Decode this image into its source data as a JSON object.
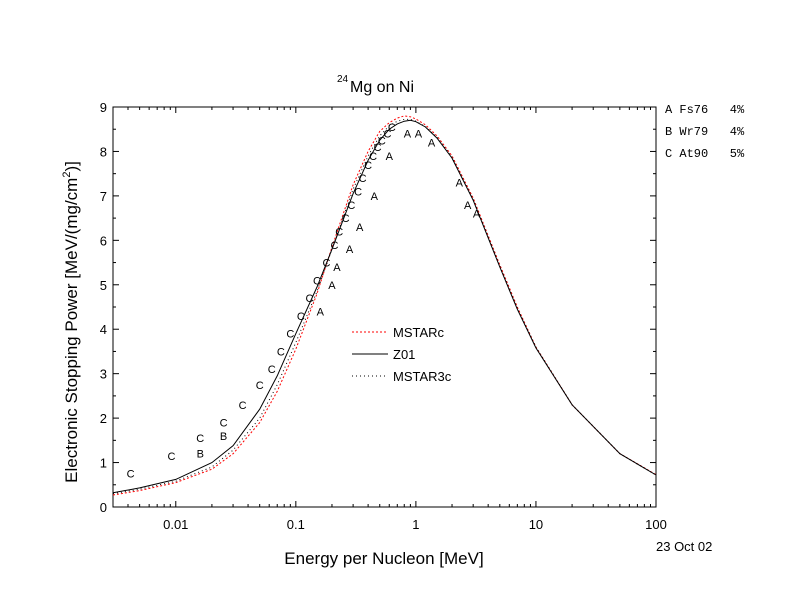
{
  "chart_data": {
    "type": "line",
    "title_superscript": "24",
    "title": "Mg on Ni",
    "xlabel": "Energy per Nucleon [MeV]",
    "ylabel": "Electronic Stopping Power [MeV/(mg/cm",
    "ylabel_sup": "2",
    "ylabel_end": ")]",
    "date": "23 Oct 02",
    "x_scale": "log",
    "xlim": [
      0.003,
      100
    ],
    "ylim": [
      0,
      9
    ],
    "x_ticks": [
      {
        "value": 0.01,
        "label": "0.01"
      },
      {
        "value": 0.1,
        "label": "0.1"
      },
      {
        "value": 1,
        "label": "1"
      },
      {
        "value": 10,
        "label": "10"
      },
      {
        "value": 100,
        "label": "100"
      }
    ],
    "y_ticks": [
      0,
      1,
      2,
      3,
      4,
      5,
      6,
      7,
      8,
      9
    ],
    "legend_position": "center",
    "series": [
      {
        "name": "MSTARc",
        "color": "#ff0000",
        "dash": "2,2",
        "x": [
          0.003,
          0.005,
          0.01,
          0.02,
          0.03,
          0.05,
          0.07,
          0.1,
          0.15,
          0.2,
          0.3,
          0.4,
          0.5,
          0.6,
          0.7,
          0.8,
          0.9,
          1.0,
          1.2,
          1.5,
          2,
          3,
          5,
          7,
          10,
          20,
          50,
          100
        ],
        "y": [
          0.27,
          0.37,
          0.55,
          0.85,
          1.2,
          1.9,
          2.6,
          3.55,
          4.8,
          5.85,
          7.25,
          8.0,
          8.45,
          8.65,
          8.75,
          8.8,
          8.78,
          8.73,
          8.6,
          8.35,
          7.9,
          6.95,
          5.45,
          4.5,
          3.6,
          2.3,
          1.2,
          0.73
        ]
      },
      {
        "name": "Z01",
        "color": "#000000",
        "dash": "",
        "x": [
          0.003,
          0.005,
          0.01,
          0.02,
          0.03,
          0.05,
          0.07,
          0.1,
          0.15,
          0.2,
          0.3,
          0.4,
          0.5,
          0.6,
          0.7,
          0.8,
          0.9,
          1.0,
          1.2,
          1.5,
          2,
          3,
          5,
          7,
          10,
          20,
          50,
          100
        ],
        "y": [
          0.32,
          0.43,
          0.62,
          1.0,
          1.38,
          2.2,
          2.95,
          3.9,
          4.95,
          5.8,
          7.05,
          7.8,
          8.25,
          8.5,
          8.62,
          8.68,
          8.7,
          8.67,
          8.55,
          8.3,
          7.85,
          6.9,
          5.4,
          4.45,
          3.58,
          2.3,
          1.2,
          0.72
        ]
      },
      {
        "name": "MSTAR3c",
        "color": "#000000",
        "dash": "1,3",
        "x": [
          0.003,
          0.005,
          0.01,
          0.02,
          0.03,
          0.05,
          0.07,
          0.1,
          0.15,
          0.2,
          0.3,
          0.4,
          0.5,
          0.6,
          0.7,
          0.8,
          0.9,
          1.0,
          1.2,
          1.5,
          2,
          3,
          5,
          7,
          10,
          20,
          50,
          100
        ],
        "y": [
          0.3,
          0.4,
          0.58,
          0.9,
          1.28,
          2.0,
          2.75,
          3.7,
          4.85,
          5.8,
          7.15,
          7.9,
          8.35,
          8.58,
          8.68,
          8.72,
          8.72,
          8.68,
          8.56,
          8.32,
          7.87,
          6.92,
          5.42,
          4.47,
          3.6,
          2.3,
          1.2,
          0.72
        ]
      }
    ],
    "datasets": [
      {
        "symbol": "A",
        "label": "A Fs76   4%",
        "points": [
          {
            "x": 0.16,
            "y": 4.4
          },
          {
            "x": 0.2,
            "y": 5.0
          },
          {
            "x": 0.22,
            "y": 5.4
          },
          {
            "x": 0.28,
            "y": 5.8
          },
          {
            "x": 0.34,
            "y": 6.3
          },
          {
            "x": 0.45,
            "y": 7.0
          },
          {
            "x": 0.6,
            "y": 7.9
          },
          {
            "x": 0.85,
            "y": 8.4
          },
          {
            "x": 1.05,
            "y": 8.4
          },
          {
            "x": 1.35,
            "y": 8.2
          },
          {
            "x": 2.3,
            "y": 7.3
          },
          {
            "x": 2.7,
            "y": 6.8
          },
          {
            "x": 3.2,
            "y": 6.6
          }
        ]
      },
      {
        "symbol": "B",
        "label": "B Wr79   4%",
        "points": [
          {
            "x": 0.016,
            "y": 1.2
          },
          {
            "x": 0.025,
            "y": 1.6
          }
        ]
      },
      {
        "symbol": "C",
        "label": "C At90   5%",
        "points": [
          {
            "x": 0.0042,
            "y": 0.75
          },
          {
            "x": 0.0092,
            "y": 1.15
          },
          {
            "x": 0.016,
            "y": 1.55
          },
          {
            "x": 0.025,
            "y": 1.9
          },
          {
            "x": 0.036,
            "y": 2.3
          },
          {
            "x": 0.05,
            "y": 2.75
          },
          {
            "x": 0.063,
            "y": 3.1
          },
          {
            "x": 0.075,
            "y": 3.5
          },
          {
            "x": 0.09,
            "y": 3.9
          },
          {
            "x": 0.11,
            "y": 4.3
          },
          {
            "x": 0.13,
            "y": 4.7
          },
          {
            "x": 0.15,
            "y": 5.1
          },
          {
            "x": 0.18,
            "y": 5.5
          },
          {
            "x": 0.21,
            "y": 5.9
          },
          {
            "x": 0.23,
            "y": 6.2
          },
          {
            "x": 0.26,
            "y": 6.5
          },
          {
            "x": 0.29,
            "y": 6.8
          },
          {
            "x": 0.33,
            "y": 7.1
          },
          {
            "x": 0.36,
            "y": 7.4
          },
          {
            "x": 0.4,
            "y": 7.7
          },
          {
            "x": 0.44,
            "y": 7.9
          },
          {
            "x": 0.48,
            "y": 8.1
          },
          {
            "x": 0.52,
            "y": 8.25
          },
          {
            "x": 0.58,
            "y": 8.4
          },
          {
            "x": 0.63,
            "y": 8.55
          }
        ]
      }
    ]
  }
}
